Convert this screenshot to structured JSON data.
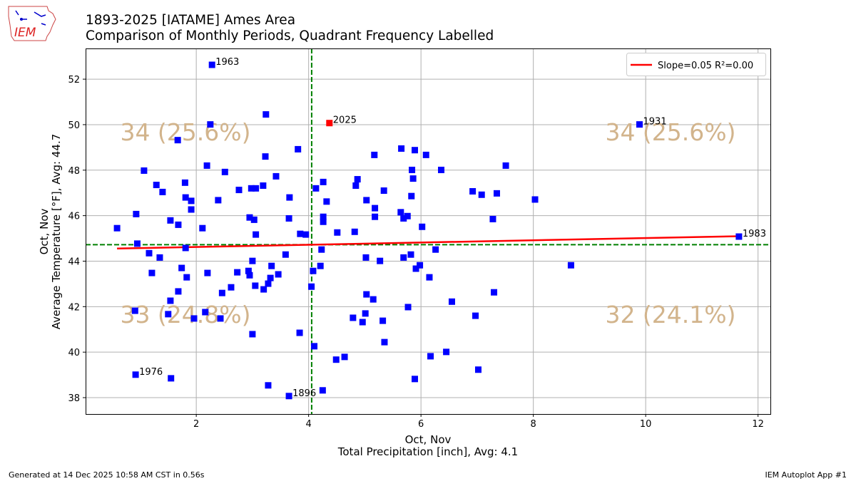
{
  "header": {
    "title_line1": "1893-2025 [IATAME] Ames Area",
    "title_line2": "Comparison of Monthly Periods, Quadrant Frequency Labelled",
    "logo_text": "IEM"
  },
  "footer": {
    "generated": "Generated at 14 Dec 2025 10:58 AM CST in 0.56s",
    "app": "IEM Autoplot App #1"
  },
  "colors": {
    "points": "#0000ff",
    "highlight": "#ff0000",
    "regression": "#ff0000",
    "mean_lines": "#008000",
    "quadrant_text": "#d2b48c",
    "grid": "#b0b0b0"
  },
  "chart_data": {
    "type": "scatter",
    "xlabel_line1": "Oct, Nov",
    "xlabel_line2": "Total Precipitation [inch], Avg: 4.1",
    "ylabel_line1": "Oct, Nov",
    "ylabel_line2": "Average Temperature [°F], Avg: 44.7",
    "xlim": [
      0.03,
      12.22
    ],
    "ylim": [
      37.28,
      53.35
    ],
    "xticks": [
      "2",
      "4",
      "6",
      "8",
      "10",
      "12"
    ],
    "yticks": [
      "38",
      "40",
      "42",
      "44",
      "46",
      "48",
      "50",
      "52"
    ],
    "grid": true,
    "legend": {
      "position": "top-right",
      "label": "Slope=0.05 R²=0.00"
    },
    "quadrant_labels": {
      "top_left": "34 (25.6%)",
      "top_right": "34 (25.6%)",
      "bottom_left": "33 (24.8%)",
      "bottom_right": "32 (24.1%)"
    },
    "highlight_year": "2025",
    "points": [
      [
        2.28,
        52.63,
        "1963"
      ],
      [
        3.24,
        50.45
      ],
      [
        2.25,
        50.01
      ],
      [
        1.67,
        49.32
      ],
      [
        3.81,
        48.92
      ],
      [
        3.23,
        48.6
      ],
      [
        1.07,
        47.98
      ],
      [
        2.19,
        48.2
      ],
      [
        2.51,
        47.92
      ],
      [
        3.42,
        47.73
      ],
      [
        1.29,
        47.35
      ],
      [
        1.8,
        47.45
      ],
      [
        1.4,
        47.04
      ],
      [
        2.76,
        47.13
      ],
      [
        2.98,
        47.2
      ],
      [
        3.06,
        47.2
      ],
      [
        3.19,
        47.32
      ],
      [
        3.66,
        46.8
      ],
      [
        1.81,
        46.8
      ],
      [
        1.91,
        46.65
      ],
      [
        2.39,
        46.68
      ],
      [
        1.91,
        46.27
      ],
      [
        0.93,
        46.07
      ],
      [
        2.95,
        45.92
      ],
      [
        3.03,
        45.82
      ],
      [
        3.65,
        45.88
      ],
      [
        0.59,
        45.45
      ],
      [
        1.54,
        45.79
      ],
      [
        1.68,
        45.6
      ],
      [
        2.11,
        45.45
      ],
      [
        3.06,
        45.17
      ],
      [
        3.85,
        45.2
      ],
      [
        3.95,
        45.17
      ],
      [
        0.95,
        44.77
      ],
      [
        1.16,
        44.35
      ],
      [
        1.35,
        44.16
      ],
      [
        1.81,
        44.58
      ],
      [
        3.0,
        44.01
      ],
      [
        3.59,
        44.29
      ],
      [
        1.21,
        43.48
      ],
      [
        1.74,
        43.7
      ],
      [
        1.83,
        43.29
      ],
      [
        2.2,
        43.48
      ],
      [
        2.73,
        43.51
      ],
      [
        2.93,
        43.57
      ],
      [
        2.95,
        43.38
      ],
      [
        3.34,
        43.79
      ],
      [
        3.46,
        43.42
      ],
      [
        3.32,
        43.26
      ],
      [
        3.28,
        43.01
      ],
      [
        3.05,
        42.92
      ],
      [
        3.2,
        42.76
      ],
      [
        2.62,
        42.85
      ],
      [
        2.46,
        42.6
      ],
      [
        1.68,
        42.67
      ],
      [
        1.54,
        42.26
      ],
      [
        0.91,
        41.82
      ],
      [
        1.5,
        41.67
      ],
      [
        1.96,
        41.48
      ],
      [
        2.16,
        41.76
      ],
      [
        2.43,
        41.48
      ],
      [
        3.0,
        40.79
      ],
      [
        3.84,
        40.85
      ],
      [
        0.92,
        39.01,
        "1976"
      ],
      [
        1.55,
        38.85
      ],
      [
        3.28,
        38.54
      ],
      [
        3.65,
        38.07,
        "1896"
      ],
      [
        4.37,
        50.07,
        "2025"
      ],
      [
        5.17,
        48.67
      ],
      [
        5.65,
        48.95
      ],
      [
        5.89,
        48.88
      ],
      [
        6.09,
        48.67
      ],
      [
        7.51,
        48.2
      ],
      [
        5.84,
        48.01
      ],
      [
        6.36,
        48.01
      ],
      [
        5.86,
        47.63
      ],
      [
        4.87,
        47.6
      ],
      [
        4.84,
        47.32
      ],
      [
        4.26,
        47.48
      ],
      [
        4.13,
        47.2
      ],
      [
        5.34,
        47.1
      ],
      [
        6.92,
        47.07
      ],
      [
        7.08,
        46.92
      ],
      [
        7.35,
        46.98
      ],
      [
        5.83,
        46.86
      ],
      [
        8.03,
        46.71
      ],
      [
        4.32,
        46.62
      ],
      [
        5.03,
        46.68
      ],
      [
        5.18,
        46.33
      ],
      [
        5.18,
        45.95
      ],
      [
        5.64,
        46.15
      ],
      [
        5.76,
        45.98
      ],
      [
        5.69,
        45.88
      ],
      [
        4.26,
        45.95
      ],
      [
        4.26,
        45.73
      ],
      [
        7.28,
        45.85
      ],
      [
        6.02,
        45.51
      ],
      [
        4.51,
        45.26
      ],
      [
        4.82,
        45.29
      ],
      [
        9.89,
        50.01,
        "1931"
      ],
      [
        11.66,
        45.08,
        "1983"
      ],
      [
        6.26,
        44.51
      ],
      [
        4.23,
        44.51
      ],
      [
        5.02,
        44.16
      ],
      [
        5.69,
        44.16
      ],
      [
        5.82,
        44.29
      ],
      [
        5.27,
        44.01
      ],
      [
        4.21,
        43.79
      ],
      [
        5.98,
        43.82
      ],
      [
        5.91,
        43.67
      ],
      [
        4.08,
        43.57
      ],
      [
        6.15,
        43.29
      ],
      [
        4.05,
        42.88
      ],
      [
        7.3,
        42.63
      ],
      [
        5.03,
        42.54
      ],
      [
        5.15,
        42.32
      ],
      [
        6.55,
        42.22
      ],
      [
        5.77,
        41.98
      ],
      [
        6.97,
        41.6
      ],
      [
        4.79,
        41.51
      ],
      [
        5.01,
        41.7
      ],
      [
        4.96,
        41.32
      ],
      [
        5.32,
        41.38
      ],
      [
        5.35,
        40.44
      ],
      [
        4.1,
        40.26
      ],
      [
        6.17,
        39.82
      ],
      [
        6.45,
        40.01
      ],
      [
        4.49,
        39.67
      ],
      [
        4.64,
        39.79
      ],
      [
        7.02,
        39.23
      ],
      [
        5.89,
        38.82
      ],
      [
        4.25,
        38.32
      ],
      [
        8.67,
        43.82
      ]
    ]
  }
}
